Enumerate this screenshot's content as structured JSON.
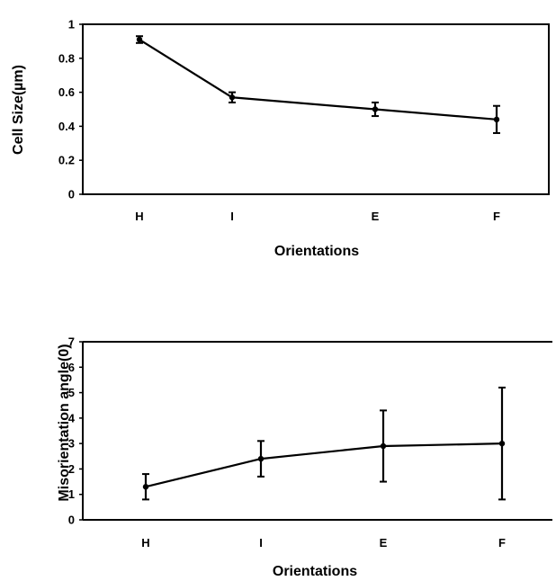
{
  "chart_data": [
    {
      "type": "line",
      "categories": [
        "H",
        "I",
        "E",
        "F"
      ],
      "series": [
        {
          "values": [
            0.91,
            0.57,
            0.5,
            0.44
          ],
          "error": [
            0.02,
            0.03,
            0.04,
            0.08
          ]
        }
      ],
      "xlabel": "Orientations",
      "ylabel": "Cell Size(µm)",
      "ylim": [
        0,
        1
      ],
      "yticks": [
        "0",
        "0.2",
        "0.4",
        "0.6",
        "0.8",
        "1"
      ],
      "grid": false
    },
    {
      "type": "line",
      "categories": [
        "H",
        "I",
        "E",
        "F"
      ],
      "series": [
        {
          "values": [
            1.3,
            2.4,
            2.9,
            3.0
          ],
          "error": [
            0.5,
            0.7,
            1.4,
            2.2
          ]
        }
      ],
      "xlabel": "Orientations",
      "ylabel": "Misorientation angle(0)",
      "ylim": [
        0,
        7
      ],
      "yticks": [
        "0",
        "1",
        "2",
        "3",
        "4",
        "5",
        "6",
        "7"
      ],
      "grid": false
    }
  ]
}
